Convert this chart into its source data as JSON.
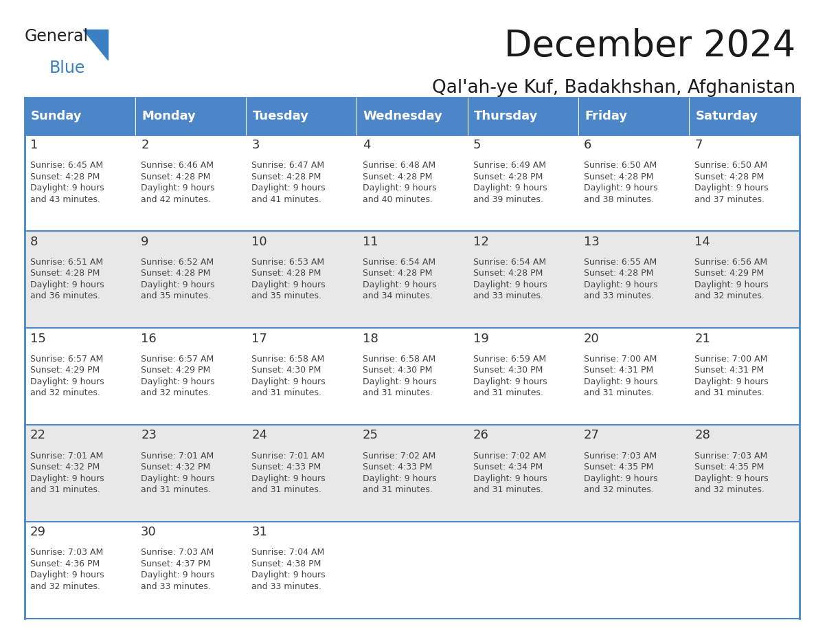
{
  "title": "December 2024",
  "subtitle": "Qal'ah-ye Kuf, Badakhshan, Afghanistan",
  "days_of_week": [
    "Sunday",
    "Monday",
    "Tuesday",
    "Wednesday",
    "Thursday",
    "Friday",
    "Saturday"
  ],
  "header_bg": "#4A86C8",
  "header_text": "#FFFFFF",
  "cell_bg_odd": "#FFFFFF",
  "cell_bg_even": "#E8E8E8",
  "border_color": "#4A86C8",
  "day_num_color": "#333333",
  "text_color": "#444444",
  "title_color": "#1a1a1a",
  "weeks": [
    [
      {
        "day": 1,
        "sunrise": "6:45 AM",
        "sunset": "4:28 PM",
        "daylight": "9 hours\nand 43 minutes."
      },
      {
        "day": 2,
        "sunrise": "6:46 AM",
        "sunset": "4:28 PM",
        "daylight": "9 hours\nand 42 minutes."
      },
      {
        "day": 3,
        "sunrise": "6:47 AM",
        "sunset": "4:28 PM",
        "daylight": "9 hours\nand 41 minutes."
      },
      {
        "day": 4,
        "sunrise": "6:48 AM",
        "sunset": "4:28 PM",
        "daylight": "9 hours\nand 40 minutes."
      },
      {
        "day": 5,
        "sunrise": "6:49 AM",
        "sunset": "4:28 PM",
        "daylight": "9 hours\nand 39 minutes."
      },
      {
        "day": 6,
        "sunrise": "6:50 AM",
        "sunset": "4:28 PM",
        "daylight": "9 hours\nand 38 minutes."
      },
      {
        "day": 7,
        "sunrise": "6:50 AM",
        "sunset": "4:28 PM",
        "daylight": "9 hours\nand 37 minutes."
      }
    ],
    [
      {
        "day": 8,
        "sunrise": "6:51 AM",
        "sunset": "4:28 PM",
        "daylight": "9 hours\nand 36 minutes."
      },
      {
        "day": 9,
        "sunrise": "6:52 AM",
        "sunset": "4:28 PM",
        "daylight": "9 hours\nand 35 minutes."
      },
      {
        "day": 10,
        "sunrise": "6:53 AM",
        "sunset": "4:28 PM",
        "daylight": "9 hours\nand 35 minutes."
      },
      {
        "day": 11,
        "sunrise": "6:54 AM",
        "sunset": "4:28 PM",
        "daylight": "9 hours\nand 34 minutes."
      },
      {
        "day": 12,
        "sunrise": "6:54 AM",
        "sunset": "4:28 PM",
        "daylight": "9 hours\nand 33 minutes."
      },
      {
        "day": 13,
        "sunrise": "6:55 AM",
        "sunset": "4:28 PM",
        "daylight": "9 hours\nand 33 minutes."
      },
      {
        "day": 14,
        "sunrise": "6:56 AM",
        "sunset": "4:29 PM",
        "daylight": "9 hours\nand 32 minutes."
      }
    ],
    [
      {
        "day": 15,
        "sunrise": "6:57 AM",
        "sunset": "4:29 PM",
        "daylight": "9 hours\nand 32 minutes."
      },
      {
        "day": 16,
        "sunrise": "6:57 AM",
        "sunset": "4:29 PM",
        "daylight": "9 hours\nand 32 minutes."
      },
      {
        "day": 17,
        "sunrise": "6:58 AM",
        "sunset": "4:30 PM",
        "daylight": "9 hours\nand 31 minutes."
      },
      {
        "day": 18,
        "sunrise": "6:58 AM",
        "sunset": "4:30 PM",
        "daylight": "9 hours\nand 31 minutes."
      },
      {
        "day": 19,
        "sunrise": "6:59 AM",
        "sunset": "4:30 PM",
        "daylight": "9 hours\nand 31 minutes."
      },
      {
        "day": 20,
        "sunrise": "7:00 AM",
        "sunset": "4:31 PM",
        "daylight": "9 hours\nand 31 minutes."
      },
      {
        "day": 21,
        "sunrise": "7:00 AM",
        "sunset": "4:31 PM",
        "daylight": "9 hours\nand 31 minutes."
      }
    ],
    [
      {
        "day": 22,
        "sunrise": "7:01 AM",
        "sunset": "4:32 PM",
        "daylight": "9 hours\nand 31 minutes."
      },
      {
        "day": 23,
        "sunrise": "7:01 AM",
        "sunset": "4:32 PM",
        "daylight": "9 hours\nand 31 minutes."
      },
      {
        "day": 24,
        "sunrise": "7:01 AM",
        "sunset": "4:33 PM",
        "daylight": "9 hours\nand 31 minutes."
      },
      {
        "day": 25,
        "sunrise": "7:02 AM",
        "sunset": "4:33 PM",
        "daylight": "9 hours\nand 31 minutes."
      },
      {
        "day": 26,
        "sunrise": "7:02 AM",
        "sunset": "4:34 PM",
        "daylight": "9 hours\nand 31 minutes."
      },
      {
        "day": 27,
        "sunrise": "7:03 AM",
        "sunset": "4:35 PM",
        "daylight": "9 hours\nand 32 minutes."
      },
      {
        "day": 28,
        "sunrise": "7:03 AM",
        "sunset": "4:35 PM",
        "daylight": "9 hours\nand 32 minutes."
      }
    ],
    [
      {
        "day": 29,
        "sunrise": "7:03 AM",
        "sunset": "4:36 PM",
        "daylight": "9 hours\nand 32 minutes."
      },
      {
        "day": 30,
        "sunrise": "7:03 AM",
        "sunset": "4:37 PM",
        "daylight": "9 hours\nand 33 minutes."
      },
      {
        "day": 31,
        "sunrise": "7:04 AM",
        "sunset": "4:38 PM",
        "daylight": "9 hours\nand 33 minutes."
      },
      null,
      null,
      null,
      null
    ]
  ]
}
